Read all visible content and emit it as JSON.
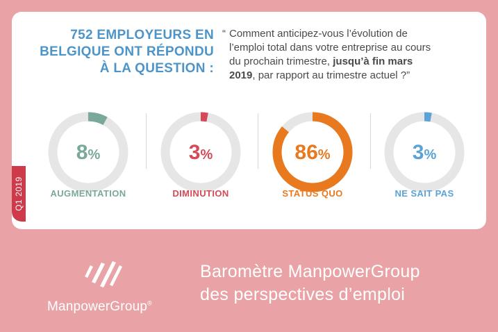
{
  "card": {
    "quarter_tab": "Q1 2019",
    "headline_lines": [
      "752 EMPLOYEURS EN",
      "BELGIQUE ONT RÉPONDU",
      "À LA QUESTION :"
    ],
    "question": {
      "open_quote": "“",
      "line1": "Comment anticipez-vous l’évolution de",
      "line2": "l’emploi total dans votre entreprise au cours",
      "line3_normal": "du prochain trimestre, ",
      "line3_bold": "jusqu’à fin mars",
      "line4_bold": "2019",
      "line4_normal": ", par rapport au trimestre actuel ?”"
    }
  },
  "chart_data": {
    "type": "pie",
    "variant": "donut-gauges",
    "categories": [
      "AUGMENTATION",
      "DIMINUTION",
      "STATUS QUO",
      "NE SAIT PAS"
    ],
    "values": [
      8,
      3,
      86,
      3
    ],
    "value_labels": [
      "8",
      "3",
      "86",
      "3"
    ],
    "unit": "%",
    "colors": [
      "#7aa89a",
      "#d54a57",
      "#e8791f",
      "#5ba3d6"
    ],
    "track_color": "#e6e6e6",
    "title": ""
  },
  "footer": {
    "brand": "ManpowerGroup",
    "trademark": "®",
    "barometer_line1": "Baromètre ManpowerGroup",
    "barometer_line2": "des perspectives d’emploi"
  }
}
